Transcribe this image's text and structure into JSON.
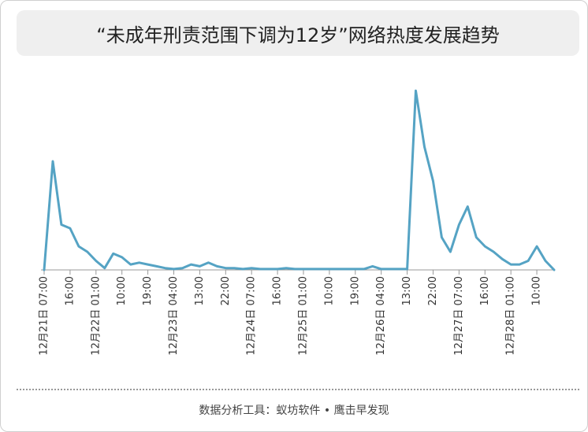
{
  "chart_data": {
    "type": "line",
    "title": "“未成年刑责范围下调为12岁”网络热度发展趋势",
    "source": "数据分析工具：蚁坊软件 • 鹰击早发现",
    "categories": [
      "12月21日 07:00",
      null,
      null,
      "16:00",
      null,
      null,
      "12月22日 01:00",
      null,
      null,
      "10:00",
      null,
      null,
      "19:00",
      null,
      null,
      "12月23日 04:00",
      null,
      null,
      "13:00",
      null,
      null,
      "22:00",
      null,
      null,
      "12月24日 07:00",
      null,
      null,
      "16:00",
      null,
      null,
      "12月25日 01:00",
      null,
      null,
      "10:00",
      null,
      null,
      "19:00",
      null,
      null,
      "12月26日 04:00",
      null,
      null,
      "13:00",
      null,
      null,
      "22:00",
      null,
      null,
      "12月27日 07:00",
      null,
      null,
      "16:00",
      null,
      null,
      "12月28日 01:00",
      null,
      null,
      "10:00",
      null,
      null
    ],
    "series": [
      {
        "name": "热度",
        "color": "#55a3c4",
        "values": [
          0,
          60,
          25,
          23,
          13,
          10,
          5,
          1,
          9,
          7,
          3,
          4,
          3,
          2,
          1,
          0.5,
          1,
          3,
          2,
          4,
          2,
          1,
          1,
          0.5,
          1,
          0.5,
          0.5,
          0.5,
          1,
          0.5,
          0.5,
          0.5,
          0.5,
          0.5,
          0.5,
          0.5,
          0.5,
          0.5,
          2,
          0.5,
          0.5,
          0.5,
          0.5,
          99,
          68,
          49,
          18,
          10,
          25,
          35,
          18,
          13,
          10,
          6,
          3,
          3,
          5,
          13,
          5,
          0
        ]
      }
    ],
    "ylim": [
      0,
      100
    ]
  }
}
